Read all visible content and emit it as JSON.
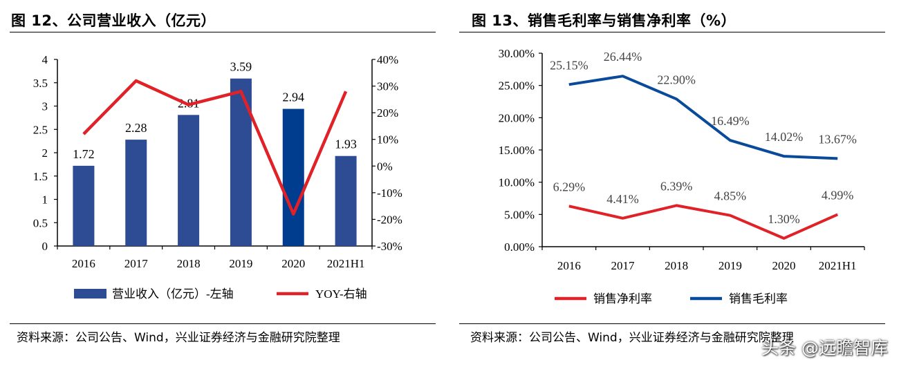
{
  "colors": {
    "bar": "#2E4C94",
    "bar_highlight": "#003D8F",
    "yoy_line": "#E02228",
    "net_line": "#E02228",
    "gross_line": "#0A4A9A",
    "axis": "#000000",
    "text": "#000000"
  },
  "left_panel": {
    "title": "图 12、公司营业收入（亿元）",
    "source": "资料来源：公司公告、Wind，兴业证券经济与金融研究院整理"
  },
  "right_panel": {
    "title": "图 13、销售毛利率与销售净利率（%）",
    "source": "资料来源：公司公告、Wind，兴业证券经济与金融研究院整理"
  },
  "watermark": "头条 @远瞻智库",
  "chart_data": [
    {
      "type": "bar",
      "title": "图 12、公司营业收入（亿元）",
      "categories": [
        "2016",
        "2017",
        "2018",
        "2019",
        "2020",
        "2021H1"
      ],
      "series": [
        {
          "name": "营业收入（亿元）-左轴",
          "axis": "left",
          "type": "bar",
          "values": [
            1.72,
            2.28,
            2.81,
            3.59,
            2.94,
            1.93
          ],
          "labels": [
            "1.72",
            "2.28",
            "2.81",
            "3.59",
            "2.94",
            "1.93"
          ]
        },
        {
          "name": "YOY-右轴",
          "axis": "right",
          "type": "line",
          "values": [
            12,
            32,
            23,
            28,
            -18,
            28
          ]
        }
      ],
      "ylim_left": [
        0,
        4
      ],
      "yticks_left": [
        "0",
        "0.5",
        "1",
        "1.5",
        "2",
        "2.5",
        "3",
        "3.5",
        "4"
      ],
      "ylim_right": [
        -30,
        40
      ],
      "yticks_right": [
        "-30%",
        "-20%",
        "-10%",
        "0%",
        "10%",
        "20%",
        "30%",
        "40%"
      ],
      "xlabel": "",
      "ylabel": "",
      "legend": "bottom",
      "grid": false
    },
    {
      "type": "line",
      "title": "图 13、销售毛利率与销售净利率（%）",
      "categories": [
        "2016",
        "2017",
        "2018",
        "2019",
        "2020",
        "2021H1"
      ],
      "series": [
        {
          "name": "销售净利率",
          "values": [
            6.29,
            4.41,
            6.39,
            4.85,
            1.3,
            4.99
          ],
          "labels": [
            "6.29%",
            "4.41%",
            "6.39%",
            "4.85%",
            "1.30%",
            "4.99%"
          ]
        },
        {
          "name": "销售毛利率",
          "values": [
            25.15,
            26.44,
            22.9,
            16.49,
            14.02,
            13.67
          ],
          "labels": [
            "25.15%",
            "26.44%",
            "22.90%",
            "16.49%",
            "14.02%",
            "13.67%"
          ]
        }
      ],
      "ylim": [
        0,
        30
      ],
      "yticks": [
        "0.00%",
        "5.00%",
        "10.00%",
        "15.00%",
        "20.00%",
        "25.00%",
        "30.00%"
      ],
      "xlabel": "",
      "ylabel": "",
      "legend": "bottom",
      "grid": false
    }
  ]
}
